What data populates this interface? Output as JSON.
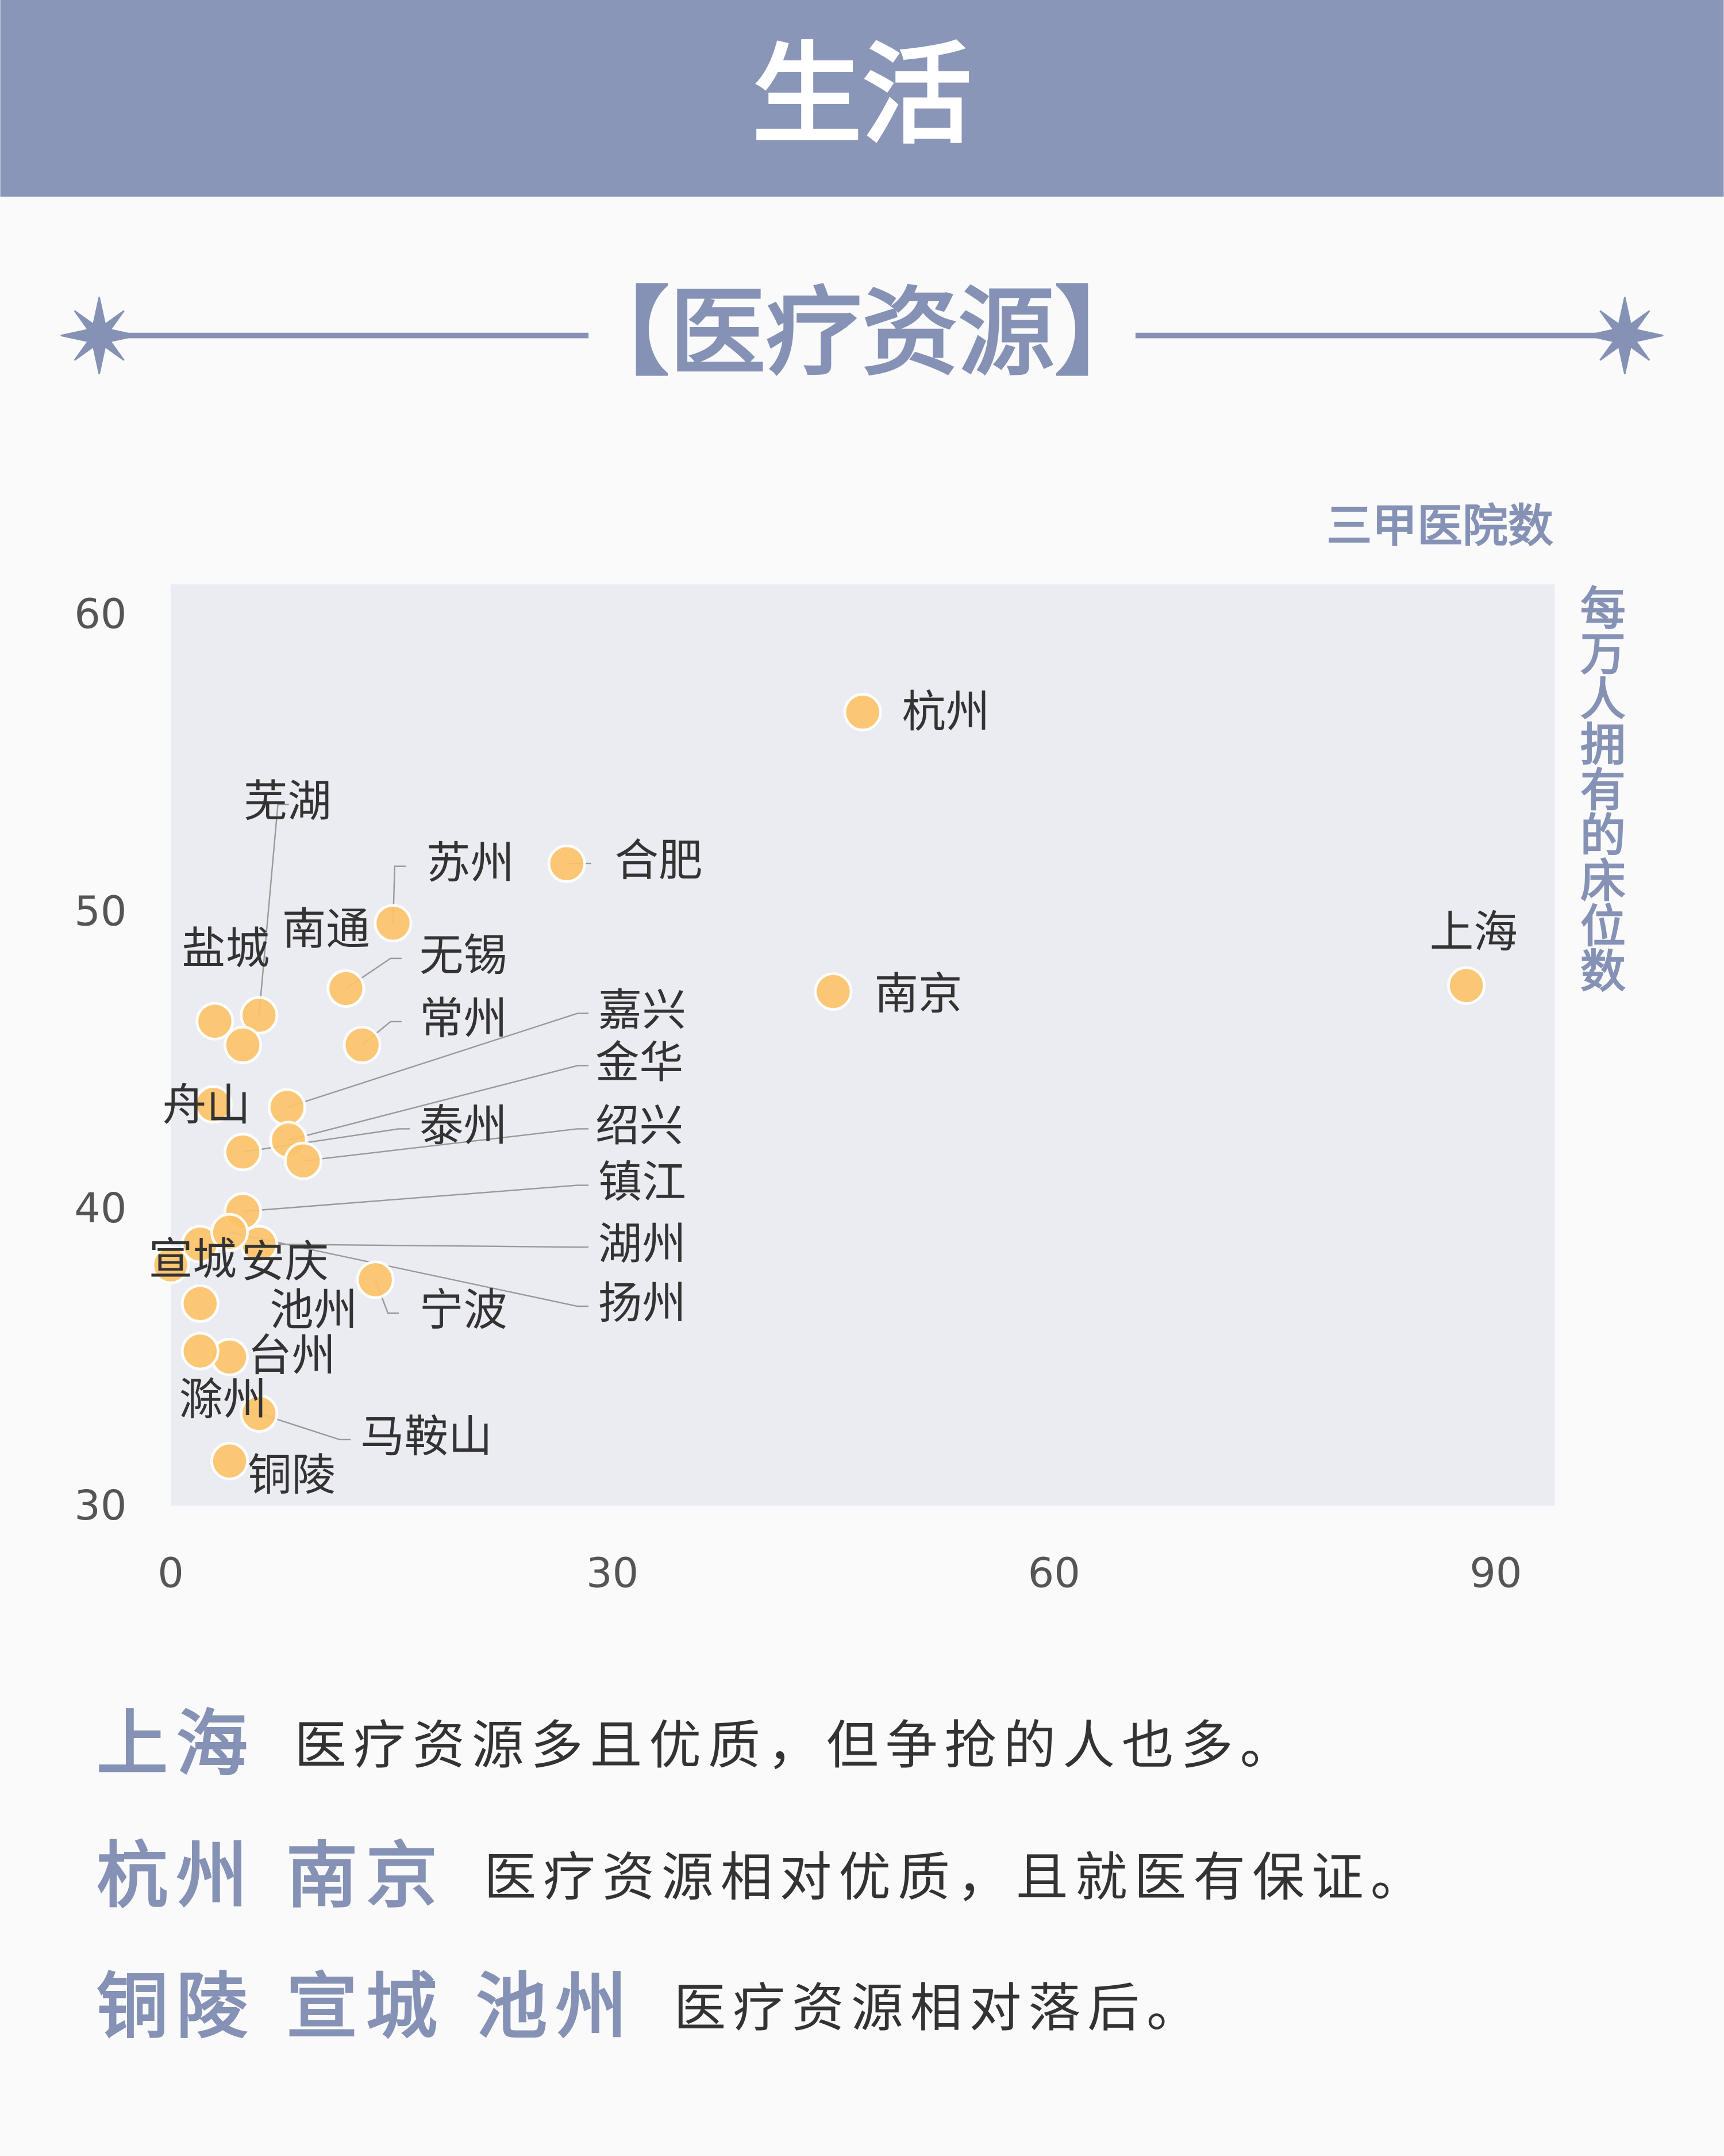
{
  "header": {
    "title": "生活"
  },
  "section_title": "【医疗资源】",
  "chart_data": {
    "type": "scatter",
    "x_label": "三甲医院数",
    "y_label": "每万人拥有的床位数",
    "color": "#fdc46a",
    "xlim": [
      0,
      94
    ],
    "xticks": [
      0,
      30,
      60,
      90
    ],
    "ylim": [
      30,
      61
    ],
    "yticks": [
      30,
      40,
      50,
      60
    ],
    "point_labels": [
      "杭州",
      "合肥",
      "苏州",
      "上海",
      "南京",
      "无锡",
      "盐城",
      "芜湖",
      "南通",
      "常州",
      "舟山",
      "嘉兴",
      "金华",
      "泰州",
      "绍兴",
      "镇江",
      "湖州",
      "安庆",
      "宣城",
      "扬州",
      "宁波",
      "池州",
      "台州",
      "滁州",
      "马鞍山",
      "铜陵"
    ],
    "x": [
      47.0,
      26.9,
      15.1,
      88.0,
      45.0,
      11.9,
      3.0,
      6.0,
      4.9,
      13.0,
      2.9,
      7.9,
      8.0,
      4.9,
      9.0,
      4.9,
      6.0,
      2.0,
      0.0,
      4.0,
      13.9,
      2.0,
      4.0,
      2.0,
      6.0,
      4.0
    ],
    "values": [
      56.7,
      51.6,
      49.6,
      47.5,
      47.3,
      47.4,
      46.3,
      46.5,
      45.5,
      45.5,
      43.5,
      43.4,
      42.3,
      41.9,
      41.6,
      39.9,
      38.8,
      38.8,
      38.1,
      39.2,
      37.6,
      36.8,
      35.0,
      35.2,
      33.1,
      31.5
    ]
  },
  "notes": [
    {
      "highlights": [
        "上海"
      ],
      "text": "医疗资源多且优质，但争抢的人也多。"
    },
    {
      "highlights": [
        "杭州",
        "南京"
      ],
      "text": "医疗资源相对优质，且就医有保证。"
    },
    {
      "highlights": [
        "铜陵",
        "宣城",
        "池州"
      ],
      "text": "医疗资源相对落后。"
    }
  ]
}
